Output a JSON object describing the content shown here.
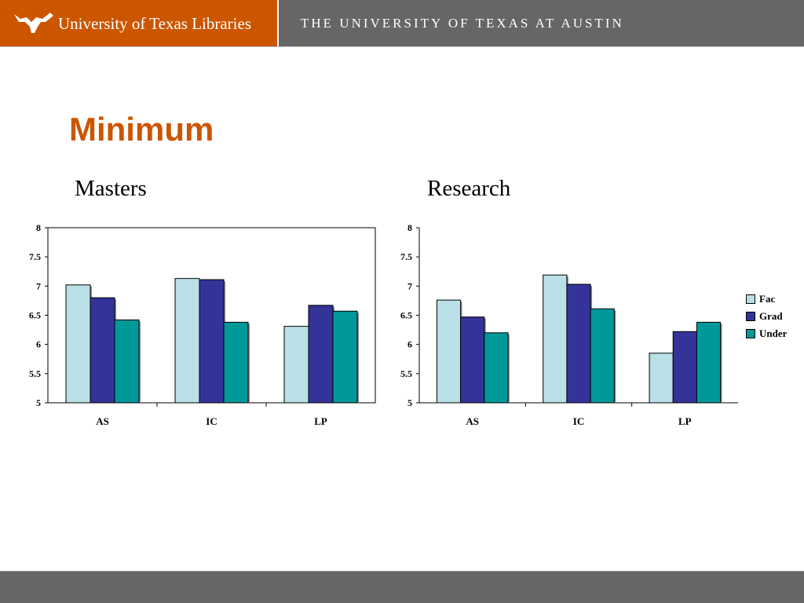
{
  "header": {
    "library_name": "University of Texas Libraries",
    "university_name": "THE UNIVERSITY OF TEXAS AT AUSTIN"
  },
  "slide": {
    "title": "Minimum",
    "subtitles": [
      "Masters",
      "Research"
    ]
  },
  "colors": {
    "brand_orange": "#cc5500",
    "header_gray": "#666666"
  },
  "chart_data": [
    {
      "type": "bar",
      "title": "Masters",
      "categories": [
        "AS",
        "IC",
        "LP"
      ],
      "series": [
        {
          "name": "Fac",
          "color": "#b9e0e6",
          "values": [
            7.02,
            7.13,
            6.31
          ]
        },
        {
          "name": "Grad",
          "color": "#333399",
          "values": [
            6.8,
            7.11,
            6.67
          ]
        },
        {
          "name": "Under",
          "color": "#009999",
          "values": [
            6.42,
            6.38,
            6.57
          ]
        }
      ],
      "ylim": [
        5,
        8
      ],
      "yticks": [
        "5",
        "5.5",
        "6",
        "6.5",
        "7",
        "7.5",
        "8"
      ],
      "xlabel": "",
      "ylabel": "",
      "frame": "box"
    },
    {
      "type": "bar",
      "title": "Research",
      "categories": [
        "AS",
        "IC",
        "LP"
      ],
      "series": [
        {
          "name": "Fac",
          "color": "#b9e0e6",
          "values": [
            6.76,
            7.19,
            5.85
          ]
        },
        {
          "name": "Grad",
          "color": "#333399",
          "values": [
            6.47,
            7.03,
            6.22
          ]
        },
        {
          "name": "Under",
          "color": "#009999",
          "values": [
            6.2,
            6.61,
            6.38
          ]
        }
      ],
      "ylim": [
        5,
        8
      ],
      "yticks": [
        "5",
        "5.5",
        "6",
        "6.5",
        "7",
        "7.5",
        "8"
      ],
      "xlabel": "",
      "ylabel": "",
      "frame": "axes",
      "legend": "right"
    }
  ]
}
